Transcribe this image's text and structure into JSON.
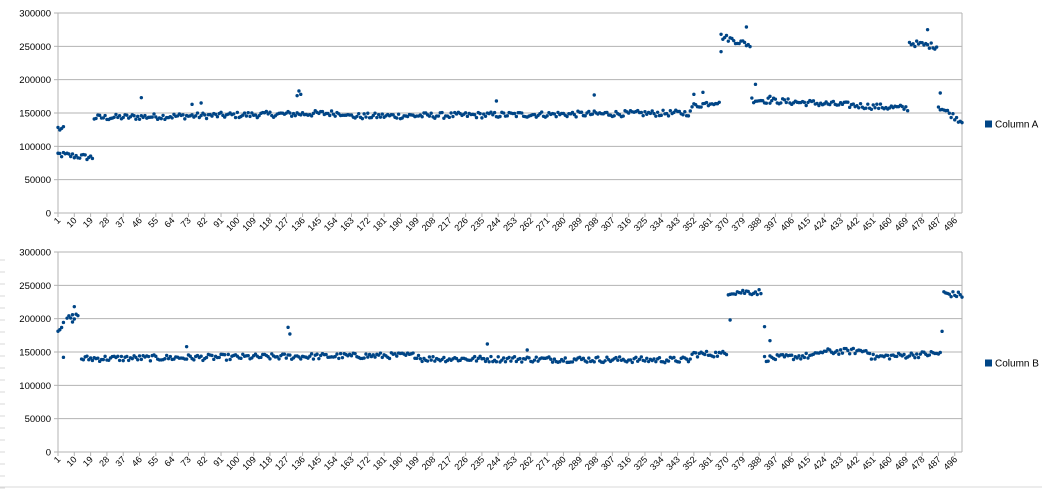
{
  "colors": {
    "series": "#004586",
    "grid": "#b3b3b3"
  },
  "chart_data": [
    {
      "type": "scatter",
      "series_name": "Column A",
      "ylim": [
        0,
        300000
      ],
      "yticks": [
        "0",
        "50000",
        "100000",
        "150000",
        "200000",
        "250000",
        "300000"
      ],
      "xlim": [
        1,
        500
      ],
      "xticks": [
        "1",
        "10",
        "19",
        "28",
        "37",
        "46",
        "55",
        "64",
        "73",
        "82",
        "91",
        "100",
        "109",
        "118",
        "127",
        "136",
        "145",
        "154",
        "163",
        "172",
        "181",
        "190",
        "199",
        "208",
        "217",
        "226",
        "235",
        "244",
        "253",
        "262",
        "271",
        "280",
        "289",
        "298",
        "307",
        "316",
        "325",
        "334",
        "343",
        "352",
        "361",
        "370",
        "379",
        "388",
        "397",
        "406",
        "415",
        "424",
        "433",
        "442",
        "451",
        "460",
        "469",
        "478",
        "487",
        "496"
      ],
      "grid": true,
      "legend": "right",
      "segments": [
        {
          "x": [
            1,
            4
          ],
          "y": [
            127000,
            125000
          ]
        },
        {
          "x": [
            1,
            20
          ],
          "y": [
            88000,
            83000
          ]
        },
        {
          "x": [
            21,
            160
          ],
          "y": [
            143000,
            150000
          ]
        },
        {
          "x": [
            161,
            350
          ],
          "y": [
            145000,
            150000
          ]
        },
        {
          "x": [
            351,
            366
          ],
          "y": [
            160000,
            168000
          ]
        },
        {
          "x": [
            367,
            383
          ],
          "y": [
            265000,
            252000
          ]
        },
        {
          "x": [
            384,
            470
          ],
          "y": [
            170000,
            157000
          ]
        },
        {
          "x": [
            471,
            486
          ],
          "y": [
            255000,
            250000
          ]
        },
        {
          "x": [
            487,
            500
          ],
          "y": [
            160000,
            137000
          ]
        }
      ],
      "outliers": [
        {
          "x": 47,
          "y": 173000
        },
        {
          "x": 75,
          "y": 163000
        },
        {
          "x": 80,
          "y": 165000
        },
        {
          "x": 133,
          "y": 176000
        },
        {
          "x": 134,
          "y": 183000
        },
        {
          "x": 135,
          "y": 178000
        },
        {
          "x": 243,
          "y": 168000
        },
        {
          "x": 297,
          "y": 177000
        },
        {
          "x": 352,
          "y": 178000
        },
        {
          "x": 357,
          "y": 181000
        },
        {
          "x": 367,
          "y": 242000
        },
        {
          "x": 381,
          "y": 279000
        },
        {
          "x": 386,
          "y": 193000
        },
        {
          "x": 394,
          "y": 175000
        },
        {
          "x": 481,
          "y": 275000
        },
        {
          "x": 488,
          "y": 180000
        }
      ]
    },
    {
      "type": "scatter",
      "series_name": "Column B",
      "ylim": [
        0,
        300000
      ],
      "yticks": [
        "0",
        "50000",
        "100000",
        "150000",
        "200000",
        "250000",
        "300000"
      ],
      "xlim": [
        1,
        500
      ],
      "xticks": [
        "1",
        "10",
        "19",
        "28",
        "37",
        "46",
        "55",
        "64",
        "73",
        "82",
        "91",
        "100",
        "109",
        "118",
        "127",
        "136",
        "145",
        "154",
        "163",
        "172",
        "181",
        "190",
        "199",
        "208",
        "217",
        "226",
        "235",
        "244",
        "253",
        "262",
        "271",
        "280",
        "289",
        "298",
        "307",
        "316",
        "325",
        "334",
        "343",
        "352",
        "361",
        "370",
        "379",
        "388",
        "397",
        "406",
        "415",
        "424",
        "433",
        "442",
        "451",
        "460",
        "469",
        "478",
        "487",
        "496"
      ],
      "grid": true,
      "legend": "right",
      "segments": [
        {
          "x": [
            1,
            4
          ],
          "y": [
            185000,
            190000
          ]
        },
        {
          "x": [
            6,
            12
          ],
          "y": [
            200000,
            205000
          ]
        },
        {
          "x": [
            14,
            200
          ],
          "y": [
            140000,
            145000
          ]
        },
        {
          "x": [
            201,
            350
          ],
          "y": [
            140000,
            138000
          ]
        },
        {
          "x": [
            351,
            370
          ],
          "y": [
            147000,
            147000
          ]
        },
        {
          "x": [
            371,
            389
          ],
          "y": [
            240000,
            240000
          ]
        },
        {
          "x": [
            391,
            420
          ],
          "y": [
            140000,
            145000
          ]
        },
        {
          "x": [
            421,
            449
          ],
          "y": [
            150000,
            152000
          ]
        },
        {
          "x": [
            450,
            488
          ],
          "y": [
            142000,
            148000
          ]
        },
        {
          "x": [
            490,
            500
          ],
          "y": [
            238000,
            235000
          ]
        }
      ],
      "outliers": [
        {
          "x": 4,
          "y": 142000
        },
        {
          "x": 9,
          "y": 195000
        },
        {
          "x": 10,
          "y": 218000
        },
        {
          "x": 72,
          "y": 158000
        },
        {
          "x": 128,
          "y": 187000
        },
        {
          "x": 129,
          "y": 177000
        },
        {
          "x": 238,
          "y": 162000
        },
        {
          "x": 260,
          "y": 153000
        },
        {
          "x": 372,
          "y": 198000
        },
        {
          "x": 391,
          "y": 188000
        },
        {
          "x": 394,
          "y": 167000
        },
        {
          "x": 489,
          "y": 181000
        }
      ]
    }
  ]
}
